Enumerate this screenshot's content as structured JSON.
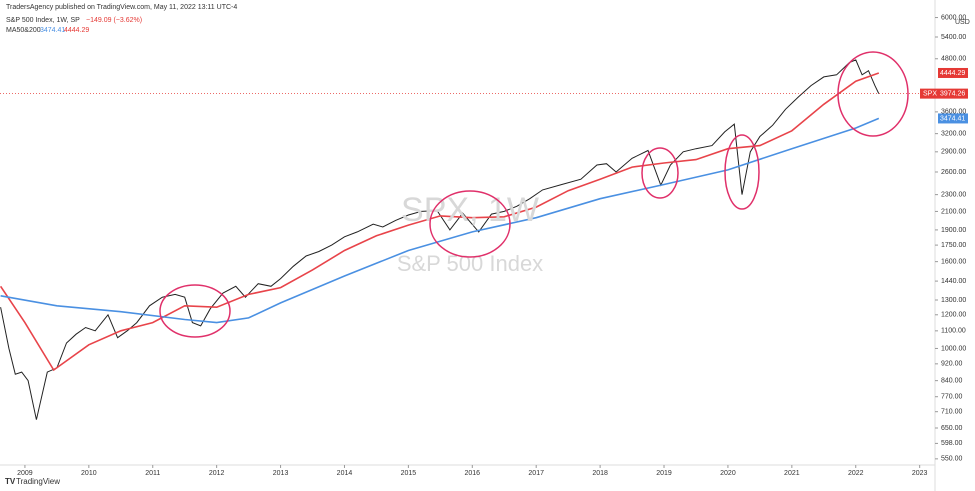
{
  "chart_data": {
    "type": "line",
    "header": "TradersAgency published on TradingView.com, May 11, 2022 13:11 UTC-4",
    "title": "S&P 500 Index, 1W, SP",
    "change": "−149.09 (−3.62%)",
    "indicator": "MA50&200",
    "watermark": "SPX, 1W",
    "currency": "USD",
    "price_tag": "SPX",
    "footer": "TradingView",
    "log_scale": true,
    "xlim": [
      2008.61,
      2023.24
    ],
    "xticks": [
      2009,
      2010,
      2011,
      2012,
      2013,
      2014,
      2015,
      2016,
      2017,
      2018,
      2019,
      2020,
      2021,
      2022,
      2023
    ],
    "ylim": [
      532,
      6183
    ],
    "yticks": [
      {
        "value": 550,
        "label": "550.00"
      },
      {
        "value": 598,
        "label": "598.00"
      },
      {
        "value": 650,
        "label": "650.00"
      },
      {
        "value": 710,
        "label": "710.00"
      },
      {
        "value": 770,
        "label": "770.00"
      },
      {
        "value": 840,
        "label": "840.00"
      },
      {
        "value": 920,
        "label": "920.00"
      },
      {
        "value": 1000,
        "label": "1000.00"
      },
      {
        "value": 1100,
        "label": "1100.00"
      },
      {
        "value": 1200,
        "label": "1200.00"
      },
      {
        "value": 1300,
        "label": "1300.00"
      },
      {
        "value": 1440,
        "label": "1440.00"
      },
      {
        "value": 1600,
        "label": "1600.00"
      },
      {
        "value": 1750,
        "label": "1750.00"
      },
      {
        "value": 1900,
        "label": "1900.00"
      },
      {
        "value": 2100,
        "label": "2100.00"
      },
      {
        "value": 2300,
        "label": "2300.00"
      },
      {
        "value": 2600,
        "label": "2600.00"
      },
      {
        "value": 2900,
        "label": "2900.00"
      },
      {
        "value": 3200,
        "label": "3200.00"
      },
      {
        "value": 3600,
        "label": "3600.00"
      },
      {
        "value": 4800,
        "label": "4800.00"
      },
      {
        "value": 5400,
        "label": "5400.00"
      },
      {
        "value": 6000,
        "label": "6000.00"
      }
    ],
    "series": [
      {
        "name": "S&P 500 Index",
        "color": "#222222",
        "x": [
          2008.62,
          2008.75,
          2008.85,
          2008.95,
          2009.05,
          2009.18,
          2009.35,
          2009.5,
          2009.65,
          2009.8,
          2009.95,
          2010.1,
          2010.3,
          2010.45,
          2010.6,
          2010.75,
          2010.95,
          2011.15,
          2011.35,
          2011.5,
          2011.62,
          2011.75,
          2011.9,
          2012.1,
          2012.3,
          2012.45,
          2012.65,
          2012.85,
          2013.0,
          2013.2,
          2013.4,
          2013.6,
          2013.8,
          2014.0,
          2014.2,
          2014.45,
          2014.6,
          2014.8,
          2015.0,
          2015.2,
          2015.45,
          2015.65,
          2015.85,
          2016.1,
          2016.3,
          2016.5,
          2016.7,
          2016.9,
          2017.1,
          2017.4,
          2017.7,
          2017.95,
          2018.1,
          2018.25,
          2018.5,
          2018.75,
          2018.95,
          2019.1,
          2019.3,
          2019.5,
          2019.75,
          2019.95,
          2020.1,
          2020.22,
          2020.35,
          2020.5,
          2020.7,
          2020.9,
          2021.1,
          2021.3,
          2021.5,
          2021.7,
          2021.9,
          2022.0,
          2022.1,
          2022.2,
          2022.3,
          2022.36
        ],
        "values": [
          1250,
          1000,
          870,
          880,
          840,
          680,
          880,
          900,
          1030,
          1080,
          1120,
          1100,
          1200,
          1060,
          1100,
          1150,
          1260,
          1320,
          1340,
          1320,
          1150,
          1130,
          1240,
          1350,
          1400,
          1320,
          1420,
          1400,
          1460,
          1560,
          1650,
          1690,
          1750,
          1830,
          1880,
          1960,
          1930,
          2000,
          2060,
          2100,
          2110,
          1900,
          2080,
          1880,
          2070,
          2100,
          2160,
          2250,
          2360,
          2430,
          2500,
          2700,
          2720,
          2600,
          2800,
          2920,
          2420,
          2700,
          2900,
          2950,
          3000,
          3230,
          3370,
          2300,
          2900,
          3150,
          3350,
          3650,
          3900,
          4150,
          4350,
          4400,
          4700,
          4770,
          4400,
          4500,
          4150,
          3974.26
        ]
      },
      {
        "color": "#e8444a",
        "x": [
          2008.62,
          2009.0,
          2009.45,
          2010.0,
          2010.5,
          2011.0,
          2011.5,
          2012.0,
          2012.5,
          2013.0,
          2013.5,
          2014.0,
          2014.5,
          2015.0,
          2015.5,
          2016.0,
          2016.5,
          2017.0,
          2017.5,
          2018.0,
          2018.5,
          2019.0,
          2019.5,
          2020.0,
          2020.5,
          2021.0,
          2021.5,
          2022.0,
          2022.36
        ],
        "values": [
          1400,
          1150,
          890,
          1020,
          1100,
          1150,
          1260,
          1250,
          1340,
          1390,
          1530,
          1700,
          1840,
          1950,
          2050,
          2030,
          2040,
          2150,
          2350,
          2500,
          2670,
          2730,
          2780,
          2950,
          3000,
          3250,
          3750,
          4250,
          4444.29
        ]
      },
      {
        "color": "#4a90e2",
        "x": [
          2008.62,
          2009.5,
          2010.5,
          2011.5,
          2012.0,
          2012.5,
          2013.0,
          2014.0,
          2015.0,
          2016.0,
          2017.0,
          2018.0,
          2019.0,
          2020.0,
          2021.0,
          2022.0,
          2022.36
        ],
        "values": [
          1330,
          1260,
          1220,
          1170,
          1150,
          1180,
          1280,
          1480,
          1700,
          1880,
          2030,
          2250,
          2430,
          2630,
          2950,
          3300,
          3474.41
        ]
      }
    ]
  }
}
